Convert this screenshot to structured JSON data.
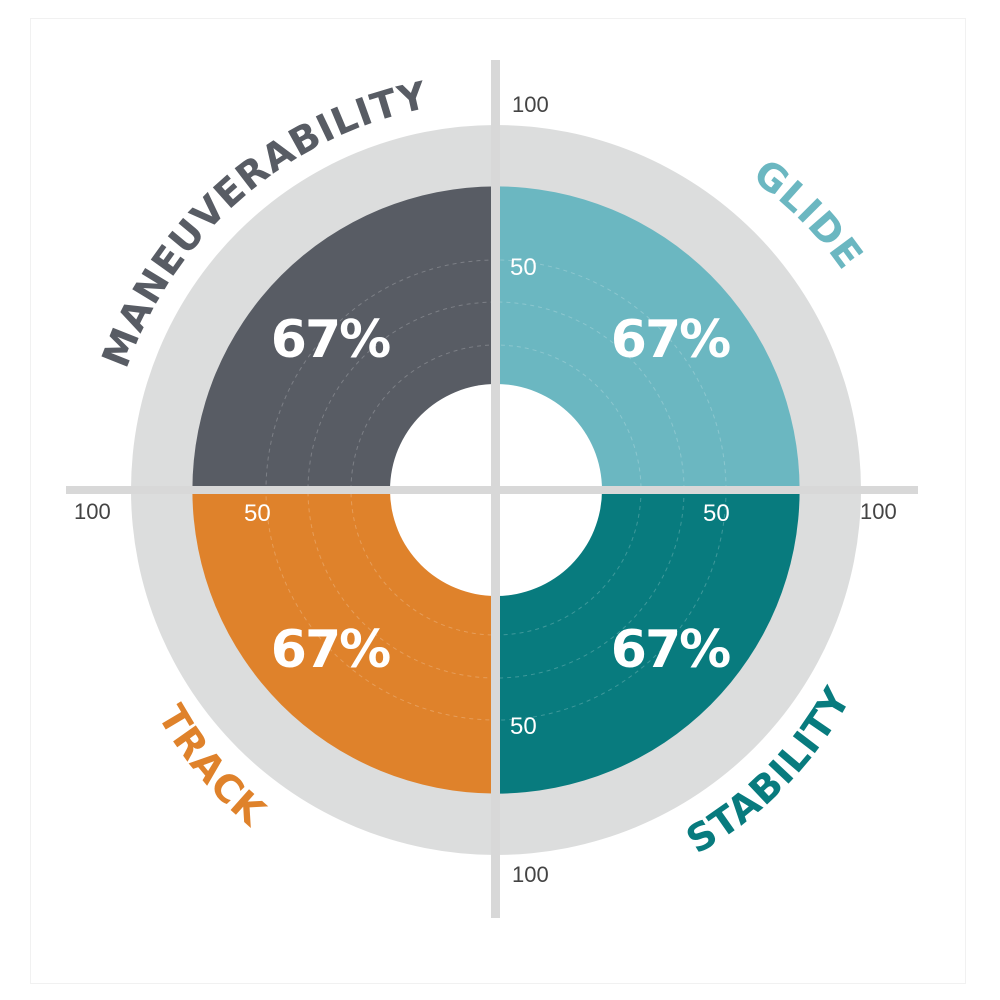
{
  "chart_data": {
    "type": "polar-quadrant",
    "scale_max": 100,
    "scale_mid": 50,
    "categories": [
      "GLIDE",
      "STABILITY",
      "TRACK",
      "MANEUVERABILITY"
    ],
    "values": [
      67,
      67,
      67,
      67
    ],
    "value_labels": [
      "67%",
      "67%",
      "67%",
      "67%"
    ],
    "axis_tick_labels": {
      "top": "100",
      "right": "100",
      "bottom": "100",
      "left": "100",
      "mid_top": "50",
      "mid_right": "50",
      "mid_bottom": "50",
      "mid_left": "50"
    },
    "colors": {
      "GLIDE": "#6bb7c1",
      "STABILITY": "#087b7e",
      "TRACK": "#df822b",
      "MANEUVERABILITY": "#585c64",
      "background_ring": "#dcdddd",
      "axis": "#d8d8d8"
    }
  }
}
